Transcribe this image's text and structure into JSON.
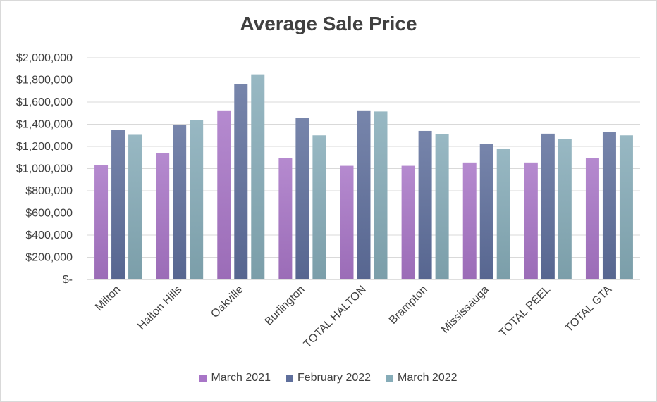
{
  "chart_data": {
    "type": "bar",
    "title": "Average Sale Price",
    "categories": [
      "Milton",
      "Halton Hills",
      "Oakville",
      "Burlington",
      "TOTAL HALTON",
      "Brampton",
      "Mississauga",
      "TOTAL PEEL",
      "TOTAL GTA"
    ],
    "series": [
      {
        "name": "March 2021",
        "values": [
          1030000,
          1140000,
          1525000,
          1095000,
          1025000,
          1025000,
          1055000,
          1055000,
          1095000
        ],
        "color": "#a875c7"
      },
      {
        "name": "February 2022",
        "values": [
          1350000,
          1395000,
          1765000,
          1455000,
          1525000,
          1340000,
          1220000,
          1315000,
          1330000
        ],
        "color": "#5f6f9c"
      },
      {
        "name": "March 2022",
        "values": [
          1305000,
          1440000,
          1850000,
          1300000,
          1515000,
          1310000,
          1180000,
          1265000,
          1300000
        ],
        "color": "#86acb8"
      }
    ],
    "yticks": [
      "$-",
      "$200,000",
      "$400,000",
      "$600,000",
      "$800,000",
      "$1,000,000",
      "$1,200,000",
      "$1,400,000",
      "$1,600,000",
      "$1,800,000",
      "$2,000,000"
    ],
    "ylim": [
      0,
      2000000
    ],
    "grid": true,
    "legend_position": "bottom"
  }
}
